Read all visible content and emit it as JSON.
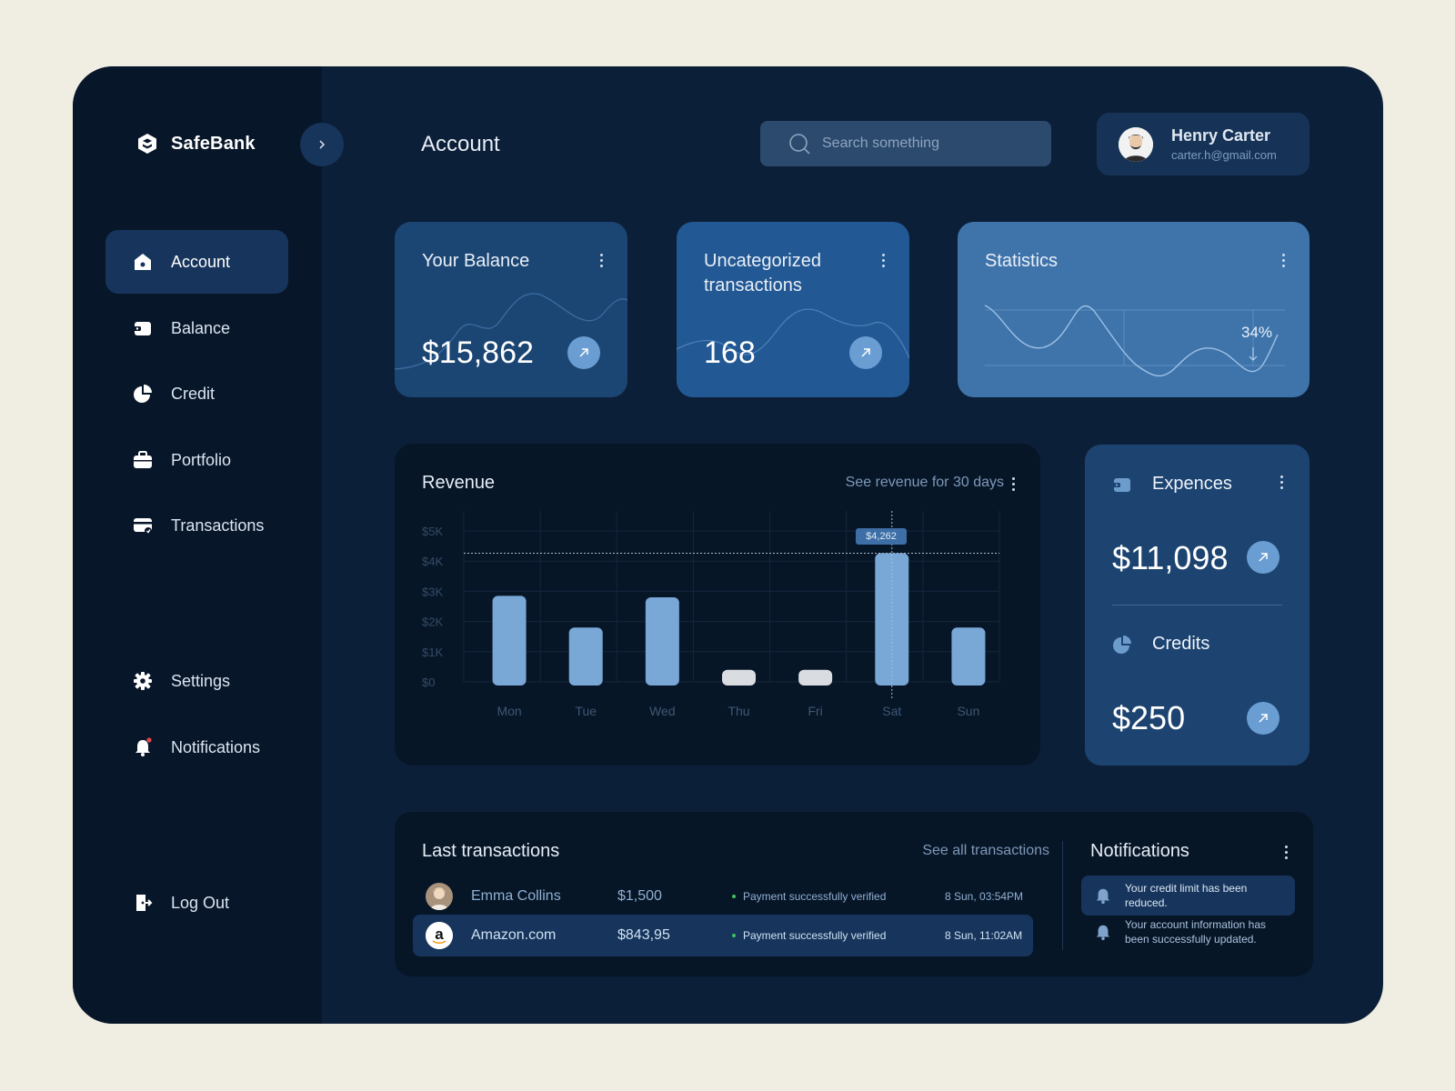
{
  "brand": {
    "name": "SafeBank"
  },
  "sidebar": {
    "items": [
      {
        "label": "Account",
        "icon": "home-icon"
      },
      {
        "label": "Balance",
        "icon": "wallet-icon"
      },
      {
        "label": "Credit",
        "icon": "pie-chart-icon"
      },
      {
        "label": "Portfolio",
        "icon": "briefcase-icon"
      },
      {
        "label": "Transactions",
        "icon": "card-icon"
      }
    ],
    "settings": "Settings",
    "notifications": "Notifications",
    "logout": "Log Out"
  },
  "header": {
    "title": "Account",
    "search_placeholder": "Search something",
    "user": {
      "name": "Henry Carter",
      "email": "carter.h@gmail.com"
    }
  },
  "cards": {
    "balance": {
      "title": "Your Balance",
      "value": "$15,862"
    },
    "uncategorized": {
      "title": "Uncategorized transactions",
      "value": "168"
    },
    "statistics": {
      "title": "Statistics",
      "percent": "34%"
    }
  },
  "revenue": {
    "title": "Revenue",
    "link": "See revenue for 30 days",
    "tooltip": "$4,262"
  },
  "chart_data": {
    "type": "bar",
    "title": "Revenue",
    "categories": [
      "Mon",
      "Tue",
      "Wed",
      "Thu",
      "Fri",
      "Sat",
      "Sun"
    ],
    "values": [
      2850,
      1800,
      2800,
      400,
      400,
      4262,
      1800
    ],
    "highlight_index": 5,
    "ytick_labels": [
      "$0",
      "$1K",
      "$2K",
      "$3K",
      "$4K",
      "$5K"
    ],
    "ylim": [
      0,
      5000
    ],
    "bar_color": "#79a7d6",
    "low_bar_color": "#d9dde2",
    "grid": true
  },
  "expenses": {
    "title": "Expences",
    "value": "$11,098",
    "credits_title": "Credits",
    "credits_value": "$250"
  },
  "transactions": {
    "title": "Last transactions",
    "link": "See all transactions",
    "rows": [
      {
        "name": "Emma Collins",
        "amount": "$1,500",
        "status": "Payment successfully verified",
        "time": "8 Sun, 03:54PM"
      },
      {
        "name": "Amazon.com",
        "amount": "$843,95",
        "status": "Payment successfully verified",
        "time": "8 Sun, 11:02AM"
      }
    ]
  },
  "notifications_panel": {
    "title": "Notifications",
    "items": [
      {
        "text": "Your credit limit has been reduced."
      },
      {
        "text": "Your account information has been successfully updated."
      }
    ]
  }
}
